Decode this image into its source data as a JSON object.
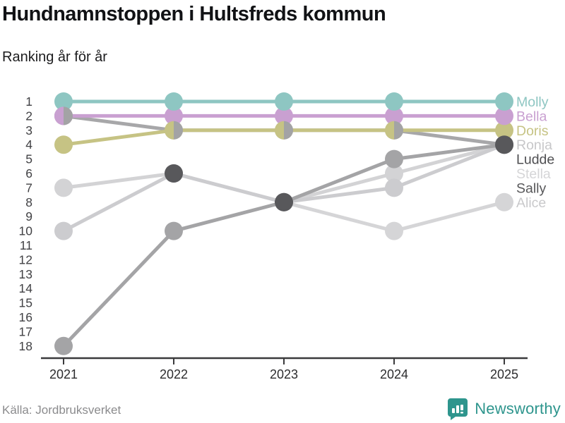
{
  "header": {
    "title": "Hundnamnstoppen i Hultsfreds kommun",
    "subtitle": "Ranking år för år"
  },
  "footer": {
    "source": "Källa: Jordbruksverket",
    "brand": "Newsworthy",
    "brand_color": "#2e958d"
  },
  "chart_data": {
    "type": "line",
    "variant": "bump-ranking",
    "title": "Hundnamnstoppen i Hultsfreds kommun",
    "subtitle": "Ranking år för år",
    "x": [
      2021,
      2022,
      2023,
      2024,
      2025
    ],
    "xticks": [
      "2021",
      "2022",
      "2023",
      "2024",
      "2025"
    ],
    "yticks": [
      "1",
      "2",
      "3",
      "4",
      "5",
      "6",
      "7",
      "8",
      "9",
      "10",
      "11",
      "12",
      "13",
      "14",
      "15",
      "16",
      "17",
      "18"
    ],
    "ylim": [
      1,
      18
    ],
    "y_inverted": true,
    "grid": false,
    "legend_position": "right-inline",
    "series": [
      {
        "name": "Molly",
        "color": "#8ec6c2",
        "label_color": "#8ec6c2",
        "label_row": 0,
        "ranks": [
          1,
          1,
          1,
          1,
          1
        ]
      },
      {
        "name": "Bella",
        "color": "#c9a0d1",
        "label_color": "#c9a0d1",
        "label_row": 1,
        "ranks": [
          2,
          2,
          2,
          2,
          2
        ]
      },
      {
        "name": "Doris",
        "color": "#c6c384",
        "label_color": "#c6c384",
        "label_row": 2,
        "ranks": [
          4,
          3,
          3,
          3,
          3
        ]
      },
      {
        "name": "Ronja",
        "color": "#a7a7a9",
        "label_color": "#c7c7c9",
        "label_row": 3,
        "ranks": [
          2,
          3,
          3,
          3,
          4
        ]
      },
      {
        "name": "Ludde",
        "color": "#a4a4a6",
        "label_color": "#4f4f52",
        "label_row": 4,
        "ranks": [
          18,
          10,
          8,
          5,
          4
        ]
      },
      {
        "name": "Stella",
        "color": "#d3d3d5",
        "label_color": "#d5d5d7",
        "label_row": 5,
        "ranks": [
          7,
          6,
          8,
          6,
          4
        ]
      },
      {
        "name": "Sally",
        "color": "#cccccf",
        "label_color": "#58585a",
        "label_row": 6,
        "ranks": [
          10,
          6,
          8,
          7,
          4
        ]
      },
      {
        "name": "Alice",
        "color": "#d5d5d7",
        "label_color": "#c9c9cb",
        "label_row": 7,
        "ranks": [
          null,
          null,
          8,
          10,
          8
        ]
      }
    ],
    "tie_markers": [
      {
        "year": 2021,
        "rank": 2,
        "type": "split",
        "left": "#c9a0d1",
        "right": "#a3a3a5"
      },
      {
        "year": 2022,
        "rank": 3,
        "type": "split",
        "left": "#c6c384",
        "right": "#a3a3a5"
      },
      {
        "year": 2023,
        "rank": 3,
        "type": "split",
        "left": "#c6c384",
        "right": "#a3a3a5"
      },
      {
        "year": 2024,
        "rank": 3,
        "type": "split",
        "left": "#c6c384",
        "right": "#a3a3a5"
      },
      {
        "year": 2022,
        "rank": 6,
        "type": "dark",
        "color": "#58585b"
      },
      {
        "year": 2023,
        "rank": 8,
        "type": "dark",
        "color": "#58585b"
      },
      {
        "year": 2025,
        "rank": 4,
        "type": "dark",
        "color": "#58585b"
      }
    ],
    "axis_color": "#3a3a3c",
    "tick_label_color": "#414144"
  }
}
